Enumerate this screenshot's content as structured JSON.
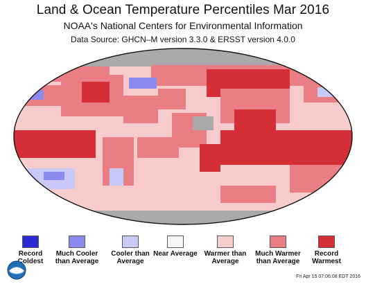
{
  "header": {
    "title": "Land & Ocean Temperature Percentiles Mar 2016",
    "subtitle": "NOAA's National Centers for Environmental Information",
    "source": "Data Source: GHCN–M version 3.3.0 & ERSST version 4.0.0"
  },
  "colors": {
    "record_coldest": "#2b2bd3",
    "much_cooler": "#8a8aef",
    "cooler": "#c9c9f8",
    "near": "#f7f7f7",
    "warmer": "#f8cccc",
    "much_warmer": "#ea7e85",
    "record_warmest": "#d42f36",
    "no_data": "#a9a9a9"
  },
  "legend": {
    "items": [
      {
        "label": "Record Coldest",
        "color": "#2b2bd3"
      },
      {
        "label": "Much Cooler than Average",
        "color": "#8a8aef"
      },
      {
        "label": "Cooler than Average",
        "color": "#c9c9f8"
      },
      {
        "label": "Near Average",
        "color": "#f7f7f7"
      },
      {
        "label": "Warmer than Average",
        "color": "#f8cccc"
      },
      {
        "label": "Much Warmer than Average",
        "color": "#ea7e85"
      },
      {
        "label": "Record Warmest",
        "color": "#d42f36"
      }
    ]
  },
  "footer": {
    "timestamp": "Fri Apr 15 07:06:08 EDT 2016",
    "logo_icon": "noaa-logo-icon"
  }
}
